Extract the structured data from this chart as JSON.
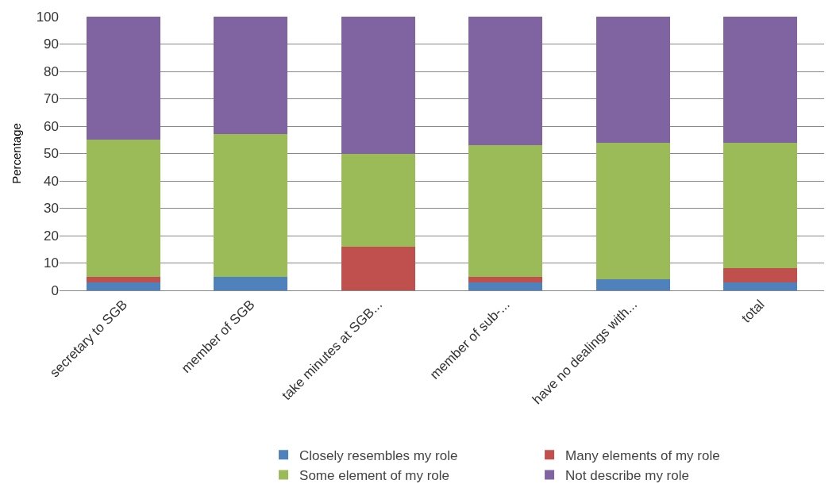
{
  "chart_data": {
    "type": "bar",
    "stacked": true,
    "ylabel": "Percentage",
    "categories": [
      "secretary to SGB",
      "member of SGB",
      "take minutes at SGB...",
      "member of sub-...",
      "have no dealings with...",
      "total"
    ],
    "series": [
      {
        "name": "Closely resembles my role",
        "color": "#4f81bd",
        "values": [
          3,
          5,
          0,
          3,
          4,
          3
        ]
      },
      {
        "name": "Many elements of my role",
        "color": "#c0504d",
        "values": [
          2,
          0,
          16,
          2,
          0,
          5
        ]
      },
      {
        "name": "Some element of my role",
        "color": "#9bbb59",
        "values": [
          50,
          52,
          34,
          48,
          50,
          46
        ]
      },
      {
        "name": "Not describe my role",
        "color": "#8064a2",
        "values": [
          45,
          43,
          50,
          47,
          46,
          46
        ]
      }
    ],
    "ylim": [
      0,
      100
    ],
    "yticks": [
      0,
      10,
      20,
      30,
      40,
      50,
      60,
      70,
      80,
      90,
      100
    ],
    "grid": "y",
    "legend": "bottom"
  }
}
